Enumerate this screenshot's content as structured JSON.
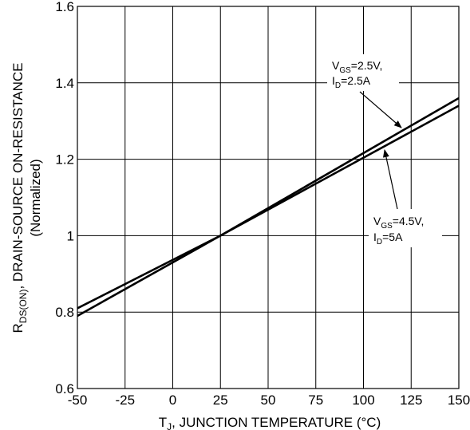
{
  "chart_data": {
    "type": "line",
    "x_ticks": [
      "-50",
      "-25",
      "0",
      "25",
      "50",
      "75",
      "100",
      "125",
      "150"
    ],
    "y_ticks": [
      "0.6",
      "0.8",
      "1",
      "1.2",
      "1.4",
      "1.6"
    ],
    "xlim": [
      -50,
      150
    ],
    "ylim": [
      0.6,
      1.6
    ],
    "grid": true,
    "xlabel": {
      "prefix": "T",
      "sub": "J",
      "text": ", JUNCTION TEMPERATURE (°C)"
    },
    "ylabel": {
      "prefix": "R",
      "sub": "DS(ON)",
      "text": ", DRAIN-SOURCE ON-RESISTANCE",
      "line2": "(Normalized)"
    },
    "series": [
      {
        "x": [
          -50,
          25,
          150
        ],
        "y": [
          0.81,
          1.0,
          1.36
        ]
      },
      {
        "x": [
          -50,
          25,
          150
        ],
        "y": [
          0.79,
          1.0,
          1.34
        ]
      }
    ],
    "annotations": [
      {
        "line1": {
          "v": "V",
          "vsub": "GS",
          "rest": "=2.5V,"
        },
        "line2": {
          "v": "I",
          "vsub": "D",
          "rest": "=2.5A"
        }
      },
      {
        "line1": {
          "v": "V",
          "vsub": "GS",
          "rest": "=4.5V,"
        },
        "line2": {
          "v": "I",
          "vsub": "D",
          "rest": "=5A"
        }
      }
    ],
    "colors": {
      "line": "#000000",
      "grid": "#000000",
      "background": "#ffffff"
    }
  }
}
